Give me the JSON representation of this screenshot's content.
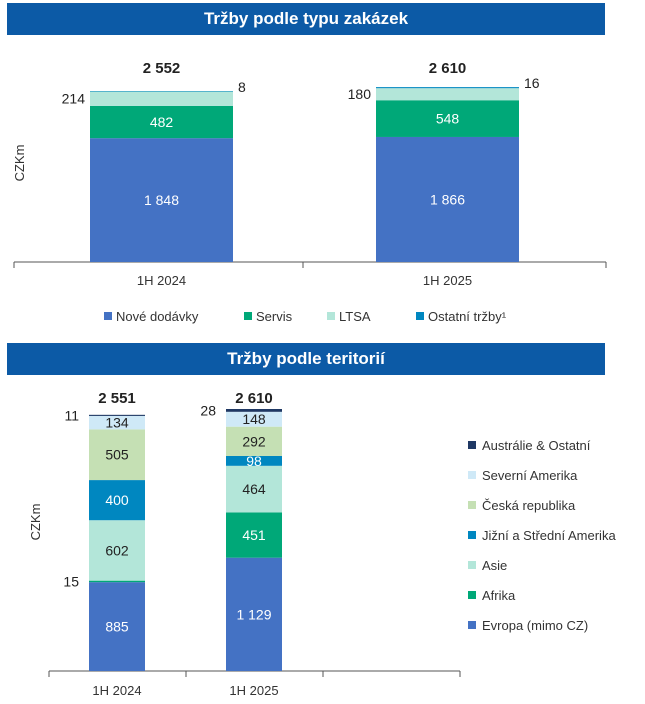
{
  "chart_data": [
    {
      "type": "bar",
      "stacked": true,
      "title": "Tržby podle typu zakázek",
      "ylabel": "CZKm",
      "categories": [
        "1H 2024",
        "1H 2025"
      ],
      "totals": [
        "2 552",
        "2 610"
      ],
      "series": [
        {
          "name": "Nové dodávky",
          "color": "#4472c4",
          "values": [
            1848,
            1866
          ],
          "labels": [
            "1 848",
            "1 866"
          ]
        },
        {
          "name": "Servis",
          "color": "#00a878",
          "values": [
            482,
            548
          ],
          "labels": [
            "482",
            "548"
          ]
        },
        {
          "name": "LTSA",
          "color": "#b3e6d9",
          "values": [
            214,
            180
          ],
          "labels": [
            "214",
            "180"
          ]
        },
        {
          "name": "Ostatní tržby¹",
          "color": "#0087c0",
          "values": [
            8,
            16
          ],
          "labels": [
            "8",
            "16"
          ]
        }
      ],
      "ylim": [
        0,
        2552
      ],
      "legend": "bottom"
    },
    {
      "type": "bar",
      "stacked": true,
      "title": "Tržby podle teritorií",
      "ylabel": "CZKm",
      "categories": [
        "1H 2024",
        "1H 2025"
      ],
      "totals": [
        "2 551",
        "2 610"
      ],
      "series": [
        {
          "name": "Evropa (mimo CZ)",
          "color": "#4472c4",
          "values": [
            885,
            1129
          ],
          "labels": [
            "885",
            "1 129"
          ]
        },
        {
          "name": "Afrika",
          "color": "#00a878",
          "values": [
            15,
            451
          ],
          "labels": [
            "15",
            "451"
          ]
        },
        {
          "name": "Asie",
          "color": "#b3e6d9",
          "values": [
            602,
            464
          ],
          "labels": [
            "602",
            "464"
          ]
        },
        {
          "name": "Jižní a Střední Amerika",
          "color": "#0087c0",
          "values": [
            400,
            98
          ],
          "labels": [
            "400",
            "98"
          ]
        },
        {
          "name": "Česká republika",
          "color": "#c5e0b4",
          "values": [
            505,
            292
          ],
          "labels": [
            "505",
            "292"
          ]
        },
        {
          "name": "Severní Amerika",
          "color": "#cfe9f7",
          "values": [
            134,
            148
          ],
          "labels": [
            "134",
            "148"
          ]
        },
        {
          "name": "Austrálie & Ostatní",
          "color": "#1f3864",
          "values": [
            11,
            28
          ],
          "labels": [
            "11",
            "28"
          ]
        }
      ],
      "ylim": [
        0,
        2610
      ],
      "legend": "right"
    }
  ]
}
